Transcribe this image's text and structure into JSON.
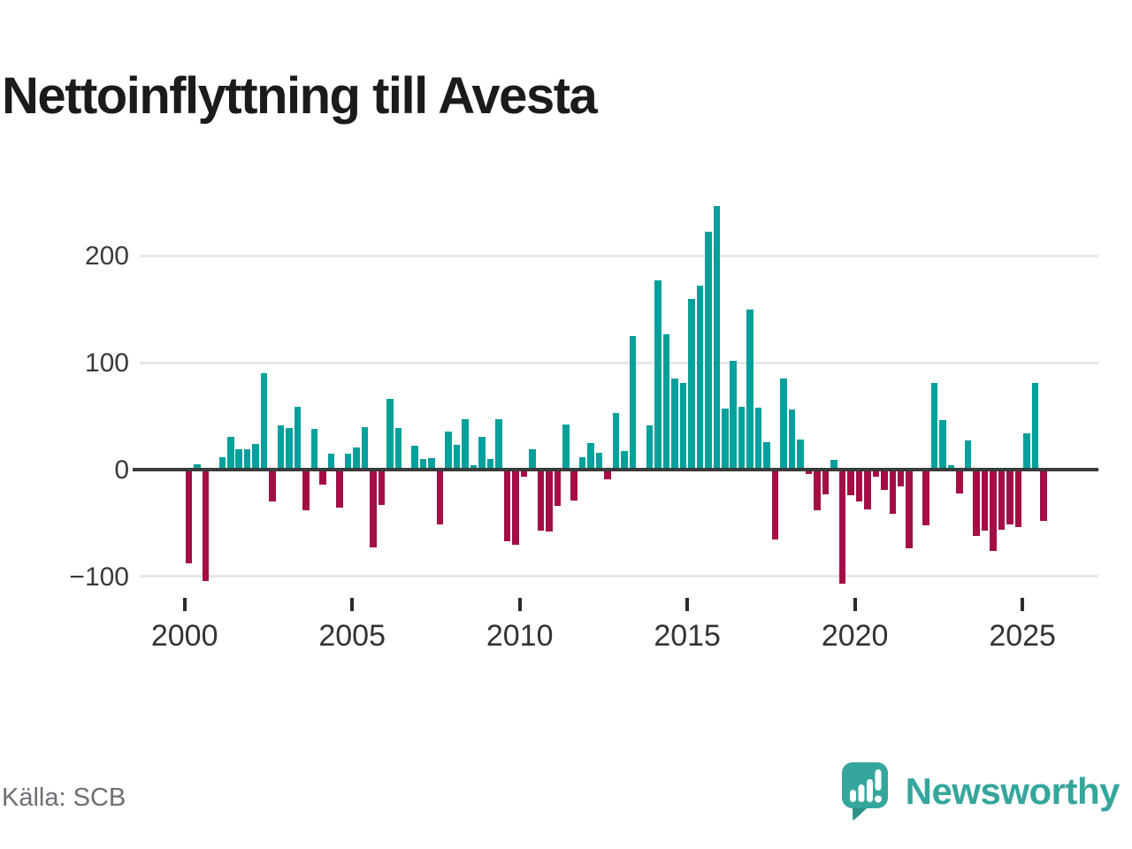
{
  "title": "Nettoinflyttning till Avesta",
  "source": "Källa: SCB",
  "brand": {
    "name": "Newsworthy",
    "logo_icon": "bar-chart-exclamation-bubble"
  },
  "colors": {
    "positive_bar": "#00a09b",
    "negative_bar": "#a50d45",
    "zero_axis": "#3b3b3b",
    "gridline": "#e7e7e7",
    "axis_label": "#3a3a3a",
    "source_text": "#6d6d75",
    "brand_teal": "#35a69c",
    "title_text": "#1b1b1b",
    "background": "#ffffff"
  },
  "y_axis": {
    "ticks": [
      {
        "label": "200",
        "value": 200
      },
      {
        "label": "100",
        "value": 100
      },
      {
        "label": "0",
        "value": 0
      },
      {
        "label": "−100",
        "value": -100
      }
    ]
  },
  "x_axis": {
    "ticks": [
      {
        "label": "2000"
      },
      {
        "label": "2005"
      },
      {
        "label": "2010"
      },
      {
        "label": "2015"
      },
      {
        "label": "2020"
      },
      {
        "label": "2025"
      }
    ]
  },
  "chart_data": {
    "type": "bar",
    "title": "Nettoinflyttning till Avesta",
    "frequency": "quarterly",
    "x_start": "2000-Q1",
    "x_end": "2025-Q3",
    "xlabel": "",
    "ylabel": "",
    "ylim": [
      -120,
      265
    ],
    "grid": true,
    "legend": "none",
    "series": [
      {
        "name": "Nettoinflyttning",
        "values": [
          -88,
          5,
          -104,
          0,
          12,
          31,
          19,
          19,
          24,
          90,
          -30,
          41,
          39,
          59,
          -38,
          38,
          -14,
          15,
          -36,
          15,
          21,
          40,
          -73,
          -33,
          66,
          39,
          0,
          22,
          10,
          11,
          -51,
          36,
          23,
          47,
          4,
          31,
          10,
          47,
          -67,
          -70,
          -7,
          19,
          -57,
          -58,
          -34,
          42,
          -29,
          12,
          25,
          16,
          -9,
          53,
          17,
          125,
          0,
          41,
          177,
          127,
          85,
          81,
          160,
          172,
          223,
          247,
          57,
          102,
          59,
          150,
          58,
          26,
          -65,
          85,
          56,
          28,
          -4,
          -38,
          -23,
          9,
          -107,
          -24,
          -30,
          -37,
          -7,
          -19,
          -41,
          -16,
          -74,
          0,
          -52,
          81,
          46,
          4,
          -22,
          27,
          -62,
          -57,
          -76,
          -56,
          -51,
          -54,
          34,
          81,
          -48
        ]
      }
    ]
  }
}
